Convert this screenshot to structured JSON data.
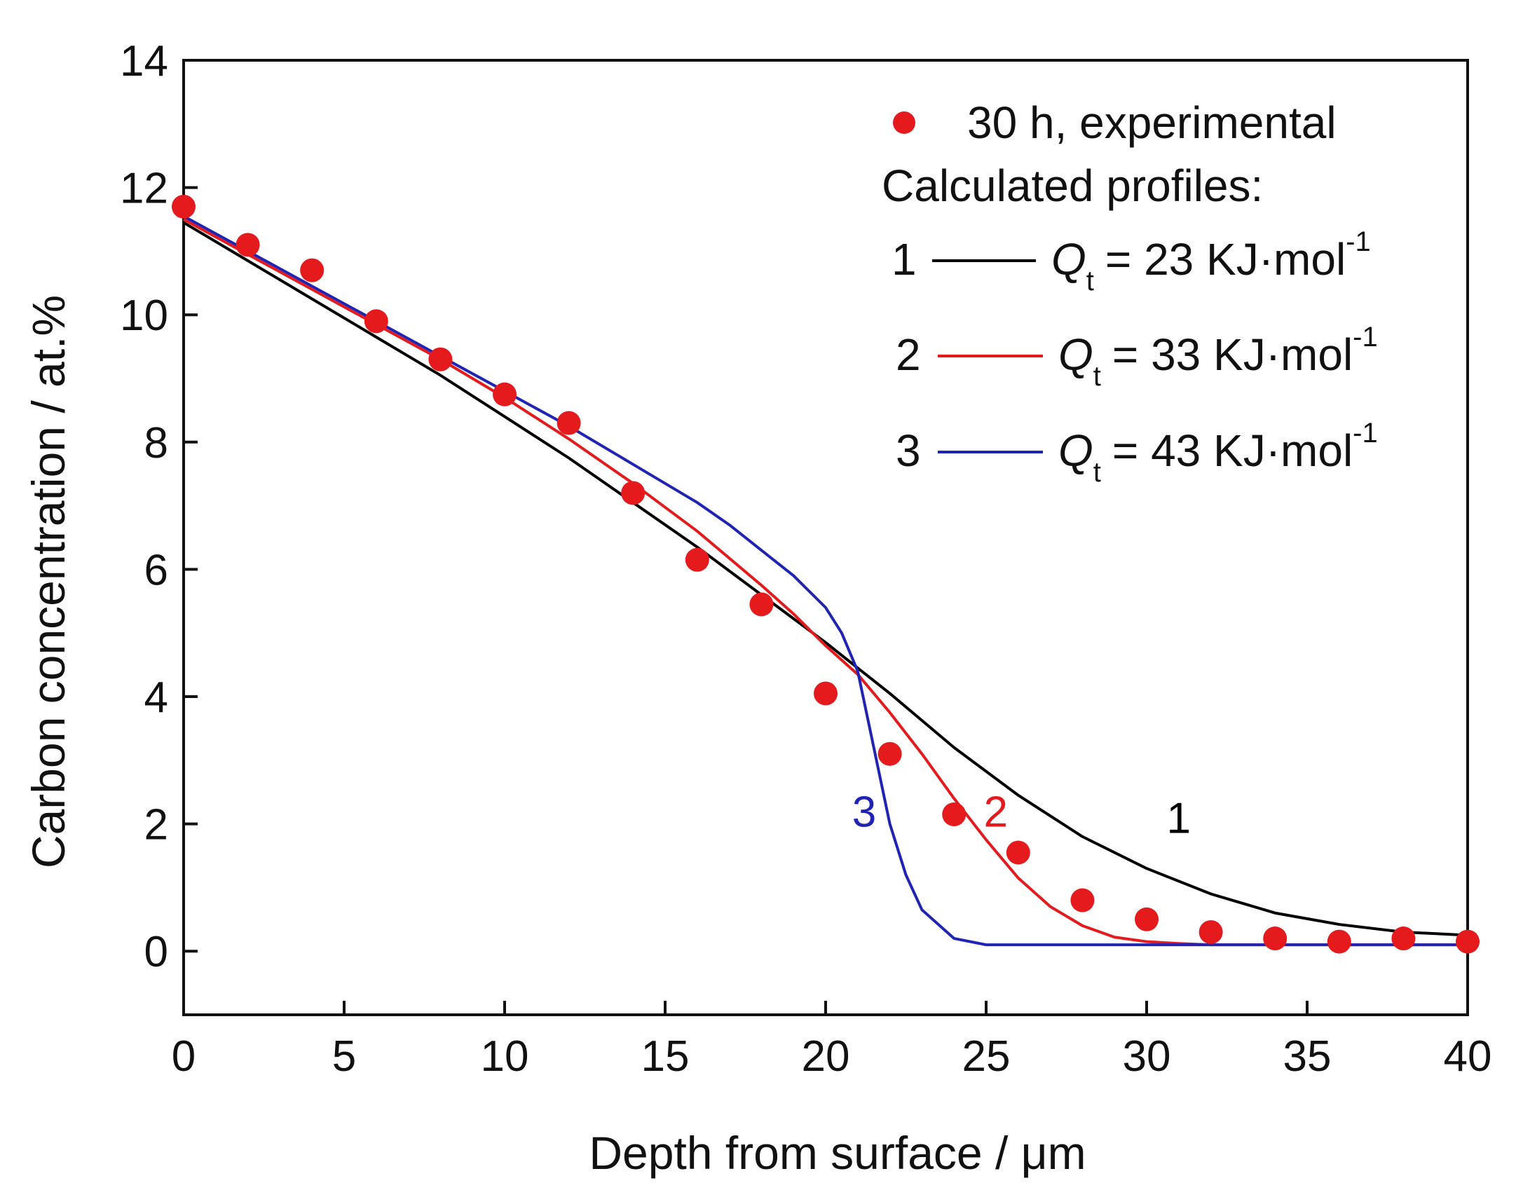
{
  "chart_data": {
    "type": "scatter",
    "xlabel": "Depth from surface / μm",
    "ylabel": "Carbon concentration / at.%",
    "xlim": [
      0,
      40
    ],
    "ylim": [
      -1,
      14
    ],
    "x_ticks": [
      0,
      5,
      10,
      15,
      20,
      25,
      30,
      35,
      40
    ],
    "y_ticks": [
      0,
      2,
      4,
      6,
      8,
      10,
      12,
      14
    ],
    "grid": false,
    "legend_position": "top-right",
    "experimental": {
      "name": "30 h, experimental",
      "color": "#e41a1c",
      "x": [
        0,
        2,
        4,
        6,
        8,
        10,
        12,
        14,
        16,
        18,
        20,
        22,
        24,
        26,
        28,
        30,
        32,
        34,
        36,
        38,
        40
      ],
      "y": [
        11.7,
        11.1,
        10.7,
        9.9,
        9.3,
        8.75,
        8.3,
        7.2,
        6.15,
        5.45,
        4.05,
        3.1,
        2.15,
        1.55,
        0.8,
        0.5,
        0.3,
        0.2,
        0.15,
        0.2,
        0.15
      ]
    },
    "legend_heading": "Calculated profiles:",
    "series": [
      {
        "name": "= 23 KJ·mol",
        "number": "1",
        "symbol": "Q",
        "subscript": "t",
        "superscript": "-1",
        "color": "#000000",
        "curve_label": "1",
        "curve_label_pos": [
          31,
          2.1
        ],
        "x": [
          0,
          2,
          4,
          6,
          8,
          10,
          12,
          14,
          16,
          18,
          20,
          21,
          22,
          24,
          26,
          28,
          30,
          32,
          34,
          36,
          38,
          40
        ],
        "y": [
          11.45,
          10.85,
          10.25,
          9.65,
          9.05,
          8.4,
          7.75,
          7.05,
          6.35,
          5.6,
          4.85,
          4.45,
          4.05,
          3.2,
          2.45,
          1.8,
          1.3,
          0.9,
          0.6,
          0.42,
          0.3,
          0.25
        ]
      },
      {
        "name": "= 33 KJ·mol",
        "number": "2",
        "symbol": "Q",
        "subscript": "t",
        "superscript": "-1",
        "color": "#e41a1c",
        "curve_label": "2",
        "curve_label_pos": [
          25.3,
          2.2
        ],
        "x": [
          0,
          2,
          4,
          6,
          8,
          10,
          12,
          14,
          16,
          18,
          19,
          20,
          21,
          22,
          23,
          24,
          25,
          26,
          27,
          28,
          29,
          30,
          31,
          32,
          34,
          36,
          38,
          40
        ],
        "y": [
          11.5,
          10.95,
          10.4,
          9.85,
          9.3,
          8.7,
          8.05,
          7.35,
          6.6,
          5.75,
          5.3,
          4.8,
          4.35,
          3.75,
          3.1,
          2.4,
          1.75,
          1.15,
          0.7,
          0.4,
          0.22,
          0.15,
          0.12,
          0.1,
          0.1,
          0.1,
          0.1,
          0.1
        ]
      },
      {
        "name": "= 43 KJ·mol",
        "number": "3",
        "symbol": "Q",
        "subscript": "t",
        "superscript": "-1",
        "color": "#1f24b4",
        "curve_label": "3",
        "curve_label_pos": [
          21.2,
          2.2
        ],
        "x": [
          0,
          2,
          4,
          6,
          8,
          10,
          12,
          14,
          16,
          17,
          18,
          19,
          20,
          20.5,
          21,
          21.5,
          22,
          22.5,
          23,
          24,
          25,
          26,
          28,
          30,
          32,
          34,
          36,
          38,
          40
        ],
        "y": [
          11.55,
          11.0,
          10.45,
          9.9,
          9.35,
          8.8,
          8.25,
          7.65,
          7.05,
          6.7,
          6.3,
          5.9,
          5.4,
          5.0,
          4.4,
          3.2,
          2.0,
          1.2,
          0.65,
          0.2,
          0.1,
          0.1,
          0.1,
          0.1,
          0.1,
          0.1,
          0.1,
          0.1,
          0.1
        ]
      }
    ]
  }
}
